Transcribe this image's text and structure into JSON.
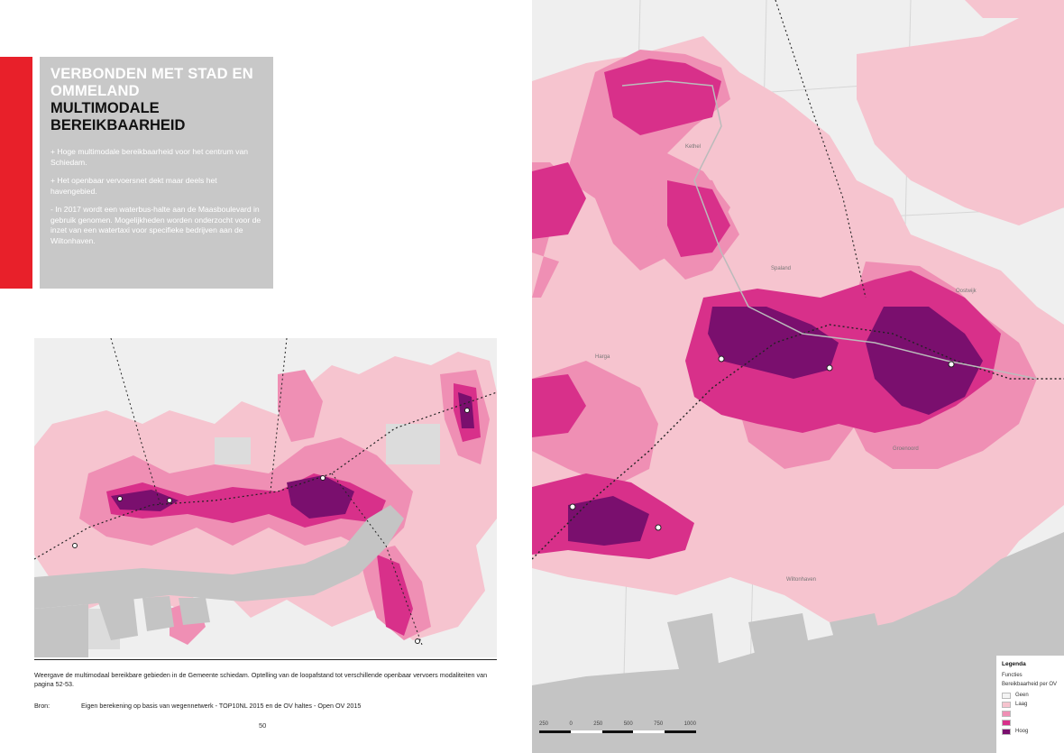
{
  "left_page": {
    "header": {
      "kicker": "Verbonden met stad en ommeland",
      "title": "Multimodale bereikbaarheid"
    },
    "bullets": [
      "+  Hoge multimodale bereikbaarheid voor het centrum van Schiedam.",
      "+ Het openbaar vervoersnet dekt maar deels het havengebied.",
      "- In 2017 wordt een waterbus-halte aan de Maasboulevard in gebruik genomen. Mogelijkheden worden onderzocht voor de inzet van een watertaxi voor specifieke bedrijven aan de Wiltonhaven."
    ],
    "caption": "Weergave de multimodaal bereikbare gebieden in de Gemeente schiedam. Optelling van de loopafstand tot verschillende openbaar vervoers modaliteiten van pagina 52-53.",
    "source_label": "Bron:",
    "source_text": "Eigen berekening op basis van wegennetwerk - TOP10NL 2015 en de OV haltes - Open OV 2015",
    "page_number": "50"
  },
  "right_page": {
    "place_labels": [
      "Harga",
      "Kethel",
      "Spaland",
      "Wiltonhaven",
      "Oostwijk",
      "Groenoord"
    ],
    "legend": {
      "title": "Legenda",
      "functions_label": "Functies",
      "scale_label": "Bereikbaarheid per OV",
      "items": [
        {
          "label": "Geen",
          "color": "#f4f4f4"
        },
        {
          "label": "Laag",
          "color": "#f6c4cf"
        },
        {
          "label": "",
          "color": "#ef8fb4"
        },
        {
          "label": "",
          "color": "#d8308a"
        },
        {
          "label": "Hoog",
          "color": "#7a0f6e"
        }
      ]
    },
    "scalebar": {
      "labels": [
        "250",
        "0",
        "250",
        "500",
        "750",
        "1000"
      ]
    }
  },
  "colors": {
    "accent_red": "#e8202a",
    "header_grey": "#c8c8c8",
    "water_grey": "#c4c4c4",
    "reach_light": "#f6c4cf",
    "reach_mid": "#ef8fb4",
    "reach_strong": "#d8308a",
    "reach_dark": "#7a0f6e"
  }
}
